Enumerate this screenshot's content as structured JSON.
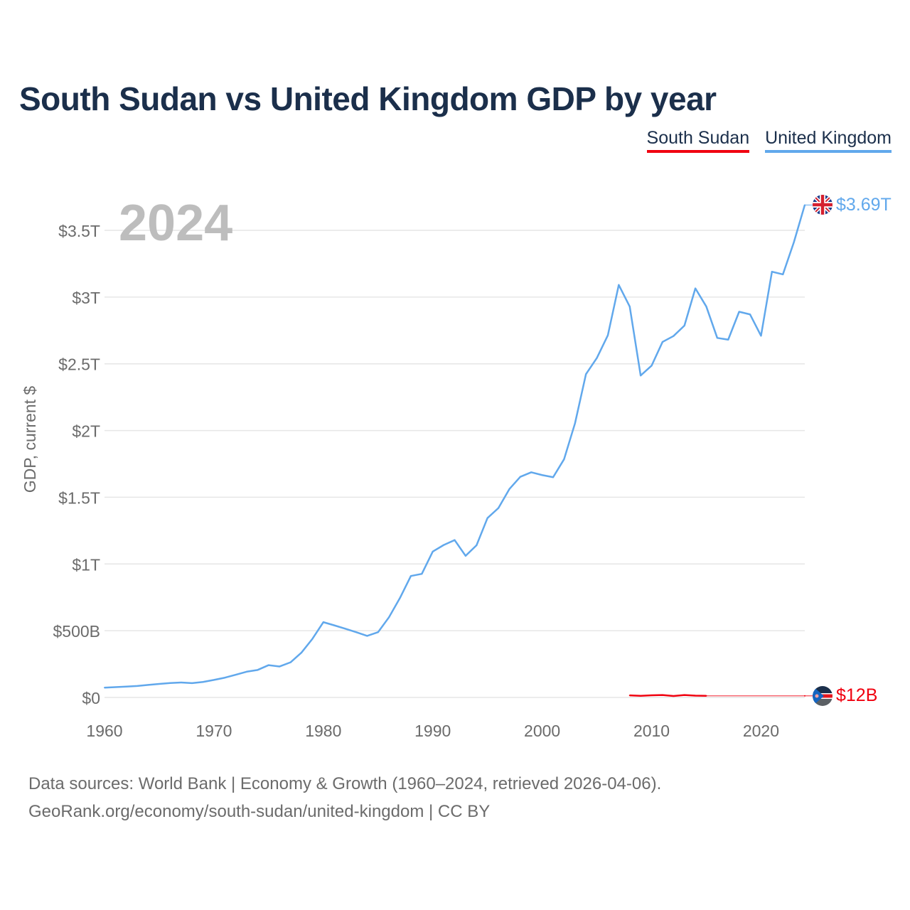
{
  "title": "South Sudan vs United Kingdom GDP by year",
  "legend": {
    "south_sudan": "South Sudan",
    "united_kingdom": "United Kingdom"
  },
  "year_label": "2024",
  "footer": {
    "line1": "Data sources: World Bank | Economy & Growth (1960–2024, retrieved 2026-04-06).",
    "line2": "GeoRank.org/economy/south-sudan/united-kingdom | CC BY"
  },
  "colors": {
    "south_sudan": "#f0000f",
    "united_kingdom": "#61a8ec",
    "grid": "#e6e6e6",
    "axis_text": "#6b6b6b"
  },
  "chart_data": {
    "type": "line",
    "title": "South Sudan vs United Kingdom GDP by year",
    "xlabel": "",
    "ylabel": "GDP, current $",
    "xlim": [
      1960,
      2024
    ],
    "ylim": [
      0,
      3.7
    ],
    "y_unit": "trillion USD",
    "x_ticks": [
      1960,
      1970,
      1980,
      1990,
      2000,
      2010,
      2020
    ],
    "x_tick_labels": [
      "1960",
      "1970",
      "1980",
      "1990",
      "2000",
      "2010",
      "2020"
    ],
    "y_ticks": [
      0,
      0.5,
      1,
      1.5,
      2,
      2.5,
      3,
      3.5
    ],
    "y_tick_labels": [
      "$0",
      "$500B",
      "$1T",
      "$1.5T",
      "$2T",
      "$2.5T",
      "$3T",
      "$3.5T"
    ],
    "grid": true,
    "legend_position": "top-right",
    "series": [
      {
        "name": "United Kingdom",
        "end_label": "$3.69T",
        "x": [
          1960,
          1961,
          1962,
          1963,
          1964,
          1965,
          1966,
          1967,
          1968,
          1969,
          1970,
          1971,
          1972,
          1973,
          1974,
          1975,
          1976,
          1977,
          1978,
          1979,
          1980,
          1981,
          1982,
          1983,
          1984,
          1985,
          1986,
          1987,
          1988,
          1989,
          1990,
          1991,
          1992,
          1993,
          1994,
          1995,
          1996,
          1997,
          1998,
          1999,
          2000,
          2001,
          2002,
          2003,
          2004,
          2005,
          2006,
          2007,
          2008,
          2009,
          2010,
          2011,
          2012,
          2013,
          2014,
          2015,
          2016,
          2017,
          2018,
          2019,
          2020,
          2021,
          2022,
          2023,
          2024
        ],
        "values": [
          0.073,
          0.077,
          0.081,
          0.086,
          0.094,
          0.101,
          0.108,
          0.112,
          0.107,
          0.116,
          0.131,
          0.148,
          0.17,
          0.193,
          0.206,
          0.242,
          0.232,
          0.263,
          0.336,
          0.439,
          0.564,
          0.54,
          0.515,
          0.489,
          0.461,
          0.489,
          0.601,
          0.745,
          0.91,
          0.926,
          1.093,
          1.142,
          1.179,
          1.061,
          1.14,
          1.344,
          1.419,
          1.561,
          1.653,
          1.687,
          1.666,
          1.65,
          1.785,
          2.054,
          2.422,
          2.544,
          2.713,
          3.091,
          2.929,
          2.412,
          2.486,
          2.664,
          2.708,
          2.786,
          3.065,
          2.929,
          2.694,
          2.681,
          2.89,
          2.87,
          2.71,
          3.19,
          3.17,
          3.41,
          3.69
        ]
      },
      {
        "name": "South Sudan",
        "end_label": "$12B",
        "x": [
          2008,
          2009,
          2010,
          2011,
          2012,
          2013,
          2014,
          2015,
          2024
        ],
        "values": [
          0.0155,
          0.0122,
          0.0157,
          0.0178,
          0.0104,
          0.018,
          0.0133,
          0.0119,
          0.012
        ]
      }
    ]
  }
}
